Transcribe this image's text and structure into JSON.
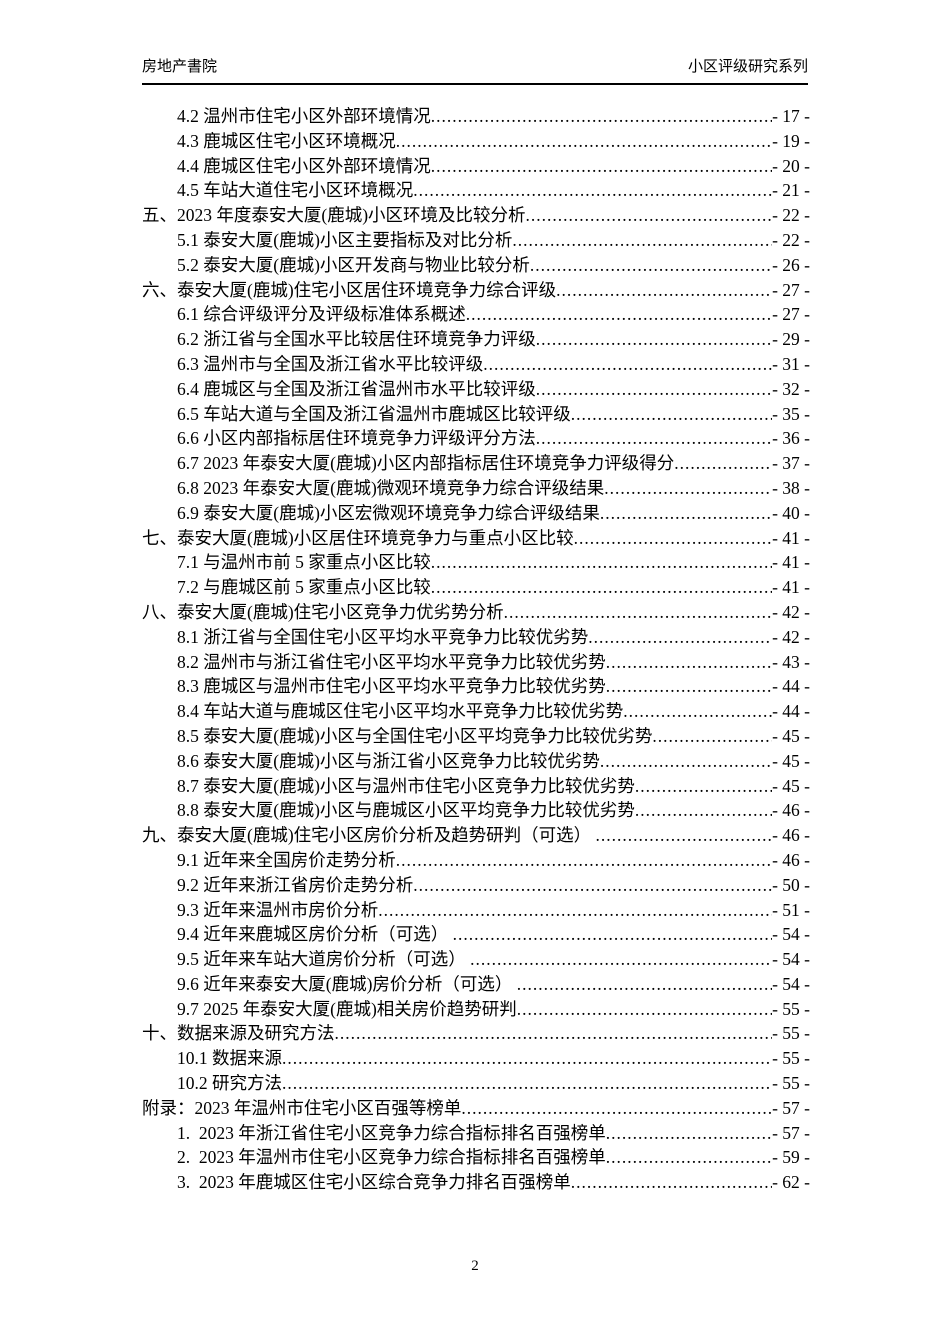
{
  "header": {
    "left_title": "房地产書院",
    "right_title": "小区评级研究系列"
  },
  "toc": {
    "entries": [
      {
        "level": 2,
        "label": "4.2 温州市住宅小区外部环境情况",
        "page": "- 17 -"
      },
      {
        "level": 2,
        "label": "4.3 鹿城区住宅小区环境概况",
        "page": "- 19 -"
      },
      {
        "level": 2,
        "label": "4.4 鹿城区住宅小区外部环境情况",
        "page": "- 20 -"
      },
      {
        "level": 2,
        "label": "4.5 车站大道住宅小区环境概况",
        "page": "- 21 -"
      },
      {
        "level": 1,
        "label": "五、2023 年度泰安大厦(鹿城)小区环境及比较分析",
        "page": "- 22 -"
      },
      {
        "level": 2,
        "label": "5.1 泰安大厦(鹿城)小区主要指标及对比分析",
        "page": "- 22 -"
      },
      {
        "level": 2,
        "label": "5.2 泰安大厦(鹿城)小区开发商与物业比较分析",
        "page": "- 26 -"
      },
      {
        "level": 1,
        "label": "六、泰安大厦(鹿城)住宅小区居住环境竞争力综合评级",
        "page": "- 27 -"
      },
      {
        "level": 2,
        "label": "6.1 综合评级评分及评级标准体系概述",
        "page": "- 27 -"
      },
      {
        "level": 2,
        "label": "6.2 浙江省与全国水平比较居住环境竞争力评级",
        "page": "- 29 -"
      },
      {
        "level": 2,
        "label": "6.3 温州市与全国及浙江省水平比较评级",
        "page": "- 31 -"
      },
      {
        "level": 2,
        "label": "6.4 鹿城区与全国及浙江省温州市水平比较评级",
        "page": "- 32 -"
      },
      {
        "level": 2,
        "label": "6.5 车站大道与全国及浙江省温州市鹿城区比较评级",
        "page": "- 35 -"
      },
      {
        "level": 2,
        "label": "6.6 小区内部指标居住环境竞争力评级评分方法",
        "page": "- 36 -"
      },
      {
        "level": 2,
        "label": "6.7 2023 年泰安大厦(鹿城)小区内部指标居住环境竞争力评级得分",
        "page": "- 37 -"
      },
      {
        "level": 2,
        "label": "6.8 2023 年泰安大厦(鹿城)微观环境竞争力综合评级结果",
        "page": "- 38 -"
      },
      {
        "level": 2,
        "label": "6.9 泰安大厦(鹿城)小区宏微观环境竞争力综合评级结果",
        "page": "- 40 -"
      },
      {
        "level": 1,
        "label": "七、泰安大厦(鹿城)小区居住环境竞争力与重点小区比较",
        "page": "- 41 -"
      },
      {
        "level": 2,
        "label": "7.1 与温州市前 5 家重点小区比较",
        "page": "- 41 -"
      },
      {
        "level": 2,
        "label": "7.2 与鹿城区前 5 家重点小区比较",
        "page": "- 41 -"
      },
      {
        "level": 1,
        "label": "八、泰安大厦(鹿城)住宅小区竞争力优劣势分析",
        "page": "- 42 -"
      },
      {
        "level": 2,
        "label": "8.1 浙江省与全国住宅小区平均水平竞争力比较优劣势",
        "page": "- 42 -"
      },
      {
        "level": 2,
        "label": "8.2 温州市与浙江省住宅小区平均水平竞争力比较优劣势",
        "page": "- 43 -"
      },
      {
        "level": 2,
        "label": "8.3 鹿城区与温州市住宅小区平均水平竞争力比较优劣势",
        "page": "- 44 -"
      },
      {
        "level": 2,
        "label": "8.4 车站大道与鹿城区住宅小区平均水平竞争力比较优劣势",
        "page": "- 44 -"
      },
      {
        "level": 2,
        "label": "8.5 泰安大厦(鹿城)小区与全国住宅小区平均竞争力比较优劣势",
        "page": "- 45 -"
      },
      {
        "level": 2,
        "label": "8.6 泰安大厦(鹿城)小区与浙江省小区竞争力比较优劣势",
        "page": "- 45 -"
      },
      {
        "level": 2,
        "label": "8.7 泰安大厦(鹿城)小区与温州市住宅小区竞争力比较优劣势",
        "page": "- 45 -"
      },
      {
        "level": 2,
        "label": "8.8 泰安大厦(鹿城)小区与鹿城区小区平均竞争力比较优劣势",
        "page": "- 46 -"
      },
      {
        "level": 1,
        "label": "九、泰安大厦(鹿城)住宅小区房价分析及趋势研判（可选） ",
        "page": "- 46 -"
      },
      {
        "level": 2,
        "label": "9.1 近年来全国房价走势分析",
        "page": "- 46 -"
      },
      {
        "level": 2,
        "label": "9.2 近年来浙江省房价走势分析",
        "page": "- 50 -"
      },
      {
        "level": 2,
        "label": "9.3 近年来温州市房价分析",
        "page": "- 51 -"
      },
      {
        "level": 2,
        "label": "9.4 近年来鹿城区房价分析（可选） ",
        "page": "- 54 -"
      },
      {
        "level": 2,
        "label": "9.5 近年来车站大道房价分析（可选） ",
        "page": "- 54 -"
      },
      {
        "level": 2,
        "label": "9.6 近年来泰安大厦(鹿城)房价分析（可选） ",
        "page": "- 54 -"
      },
      {
        "level": 2,
        "label": "9.7 2025 年泰安大厦(鹿城)相关房价趋势研判",
        "page": "- 55 -"
      },
      {
        "level": 1,
        "label": "十、数据来源及研究方法",
        "page": "- 55 -"
      },
      {
        "level": 2,
        "label": "10.1 数据来源",
        "page": "- 55 -"
      },
      {
        "level": 2,
        "label": "10.2 研究方法",
        "page": "- 55 -"
      },
      {
        "level": 1,
        "label": "附录：2023 年温州市住宅小区百强等榜单",
        "page": "- 57 -"
      },
      {
        "level": 2,
        "label": "1.  2023 年浙江省住宅小区竞争力综合指标排名百强榜单",
        "page": "- 57 -"
      },
      {
        "level": 2,
        "label": "2.  2023 年温州市住宅小区竞争力综合指标排名百强榜单",
        "page": "- 59 -"
      },
      {
        "level": 2,
        "label": "3.  2023 年鹿城区住宅小区综合竞争力排名百强榜单",
        "page": "- 62 -"
      }
    ]
  },
  "footer": {
    "page_number": "2"
  }
}
